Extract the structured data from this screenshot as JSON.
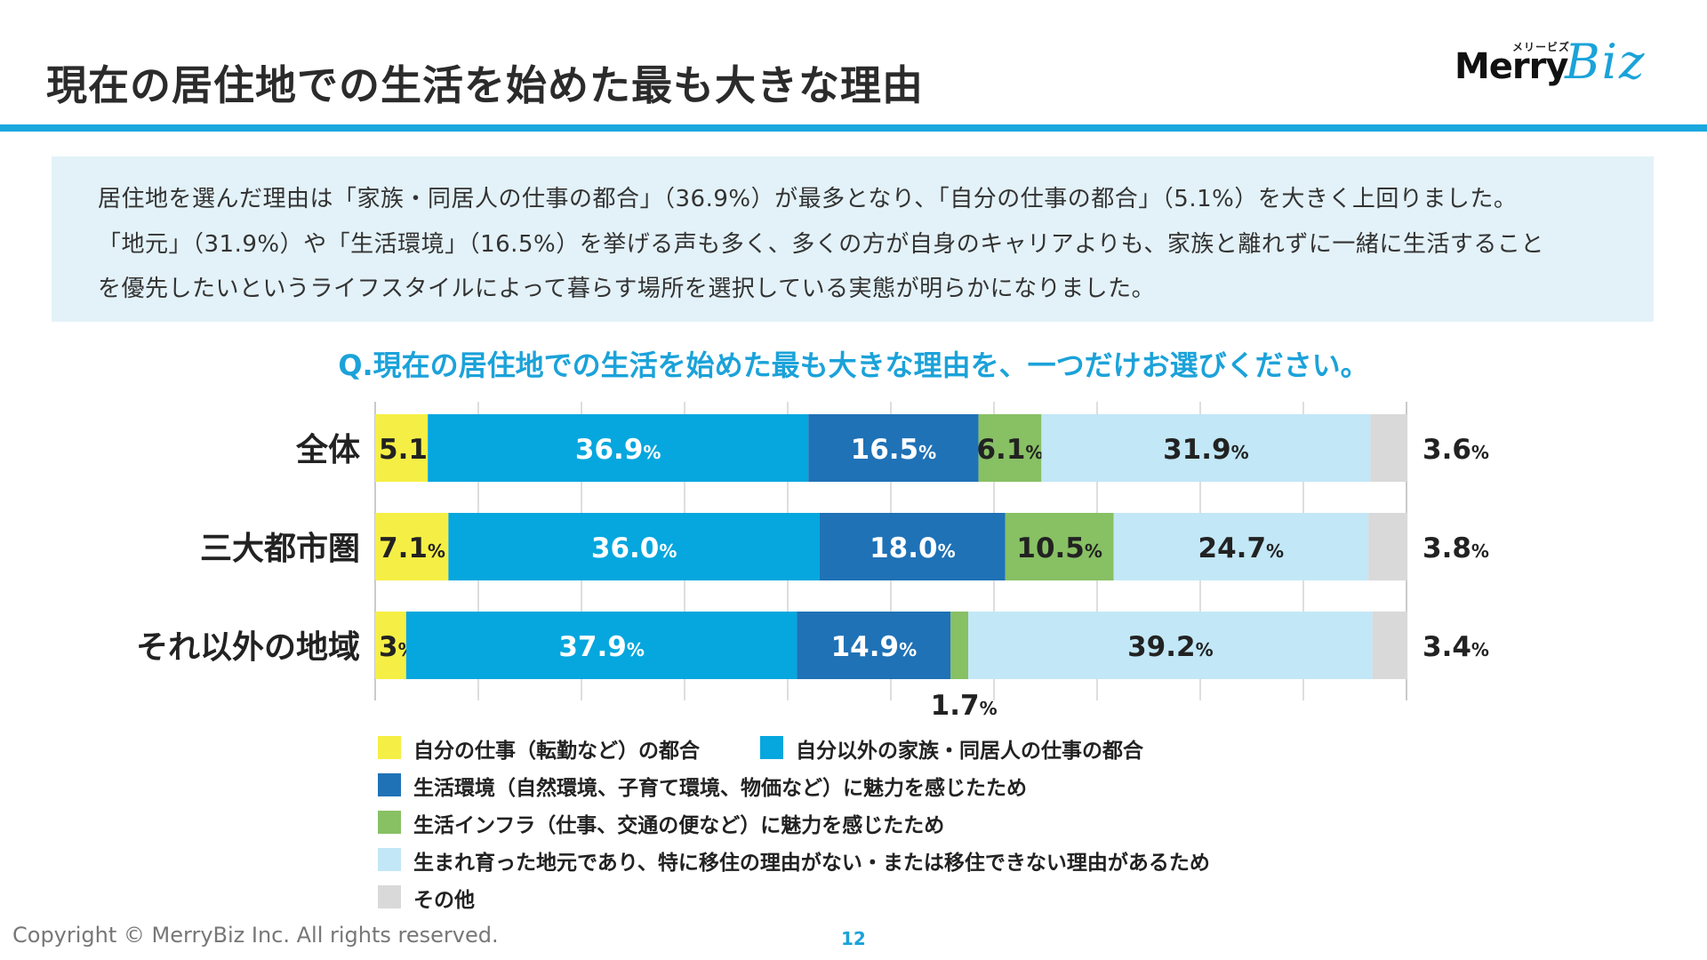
{
  "page": {
    "title": "現在の居住地での生活を始めた最も大きな理由",
    "logo_sub": "メリービズ",
    "logo_main": "Merry",
    "logo_script": "Biz",
    "summary_lines": [
      "居住地を選んだ理由は「家族・同居人の仕事の都合」（36.9%）が最多となり、「自分の仕事の都合」（5.1%）を大きく上回りました。",
      "「地元」（31.9%）や「生活環境」（16.5%）を挙げる声も多く、多くの方が自身のキャリアよりも、家族と離れずに一緒に生活すること",
      "を優先したいというライフスタイルによって暮らす場所を選択している実態が明らかになりました。"
    ],
    "question": "Q.現在の居住地での生活を始めた最も大きな理由を、一つだけお選びください。",
    "footer": "Copyright © MerryBiz Inc. All rights reserved.",
    "page_number": "12"
  },
  "chart_data": {
    "type": "bar",
    "orientation": "horizontal",
    "stacked": true,
    "categories": [
      "全体",
      "三大都市圏",
      "それ以外の地域"
    ],
    "percent_suffix": "%",
    "xlim": [
      0,
      100
    ],
    "grid": true,
    "series": [
      {
        "name": "自分の仕事（転勤など）の都合",
        "color": "#f5ef45",
        "values": [
          5.1,
          7.1,
          3
        ],
        "labels": [
          "5.1",
          "7.1",
          "3"
        ]
      },
      {
        "name": "自分以外の家族・同居人の仕事の都合",
        "color": "#05a7de",
        "values": [
          36.9,
          36.0,
          37.9
        ],
        "labels": [
          "36.9",
          "36.0",
          "37.9"
        ]
      },
      {
        "name": "生活環境（自然環境、子育て環境、物価など）に魅力を感じたため",
        "color": "#1f72b6",
        "values": [
          16.5,
          18.0,
          14.9
        ],
        "labels": [
          "16.5",
          "18.0",
          "14.9"
        ]
      },
      {
        "name": "生活インフラ（仕事、交通の便など）に魅力を感じたため",
        "color": "#88c064",
        "values": [
          6.1,
          10.5,
          1.7
        ],
        "labels": [
          "6.1",
          "10.5",
          "1.7"
        ]
      },
      {
        "name": "生まれ育った地元であり、特に移住の理由がない・または移住できない理由があるため",
        "color": "#c2e7f6",
        "values": [
          31.9,
          24.7,
          39.2
        ],
        "labels": [
          "31.9",
          "24.7",
          "39.2"
        ]
      },
      {
        "name": "その他",
        "color": "#d9d9d9",
        "values": [
          3.6,
          3.8,
          3.4
        ],
        "labels": [
          "3.6",
          "3.8",
          "3.4"
        ]
      }
    ]
  }
}
